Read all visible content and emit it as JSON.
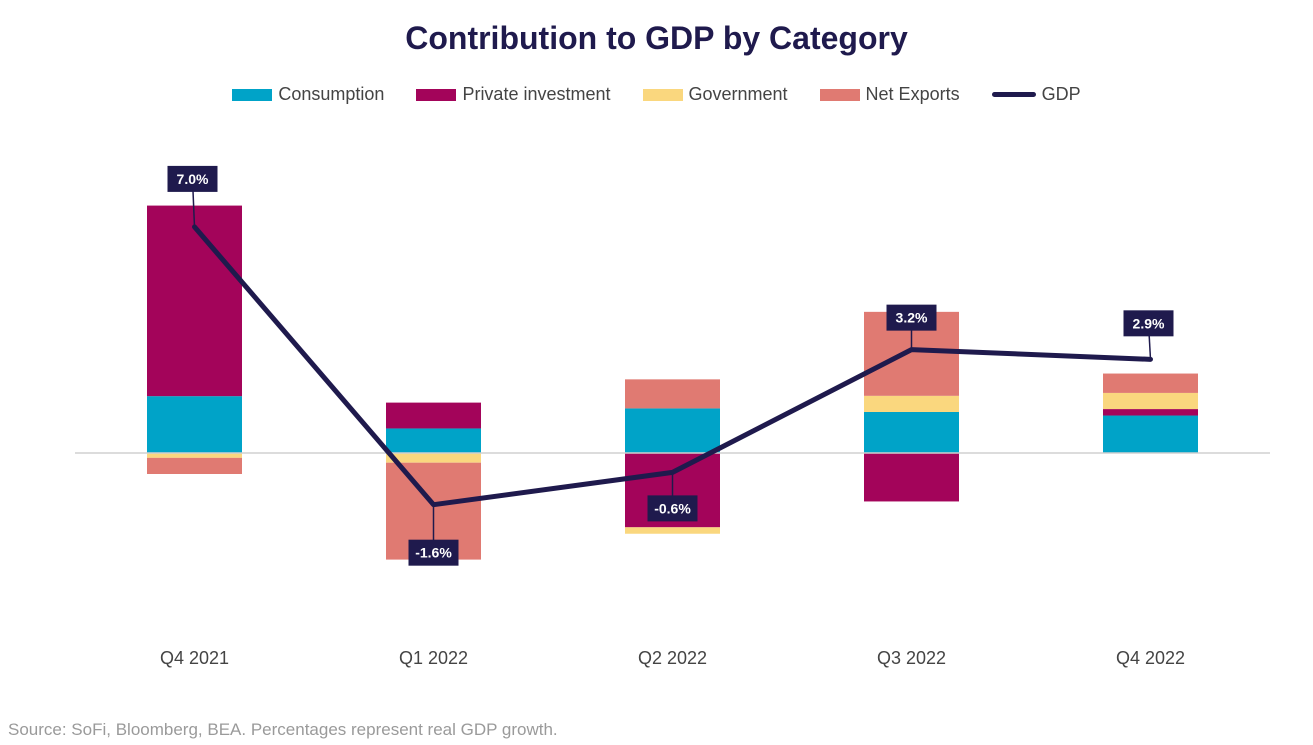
{
  "title": "Contribution to GDP by Category",
  "source": "Source: SoFi, Bloomberg, BEA. Percentages represent real GDP growth.",
  "chart_data": {
    "type": "bar",
    "stacked": true,
    "categories": [
      "Q4 2021",
      "Q1 2022",
      "Q2 2022",
      "Q3 2022",
      "Q4 2022"
    ],
    "series": [
      {
        "name": "Consumption",
        "color": "#00a3c8",
        "values": [
          1.76,
          0.76,
          1.38,
          1.27,
          1.16
        ]
      },
      {
        "name": "Private investment",
        "color": "#a3045a",
        "values": [
          5.9,
          0.8,
          -2.3,
          -1.5,
          0.2
        ]
      },
      {
        "name": "Government",
        "color": "#fad77e",
        "values": [
          -0.15,
          -0.3,
          -0.2,
          0.5,
          0.5
        ]
      },
      {
        "name": "Net Exports",
        "color": "#e07a72",
        "values": [
          -0.5,
          -3.0,
          0.9,
          2.6,
          0.6
        ]
      }
    ],
    "line": {
      "name": "GDP",
      "color": "#1f1a4d",
      "values": [
        7.0,
        -1.6,
        -0.6,
        3.2,
        2.9
      ],
      "labels": [
        "7.0%",
        "-1.6%",
        "-0.6%",
        "3.2%",
        "2.9%"
      ]
    },
    "ylim": [
      -5,
      8.5
    ],
    "grid": false,
    "legend_position": "top"
  }
}
